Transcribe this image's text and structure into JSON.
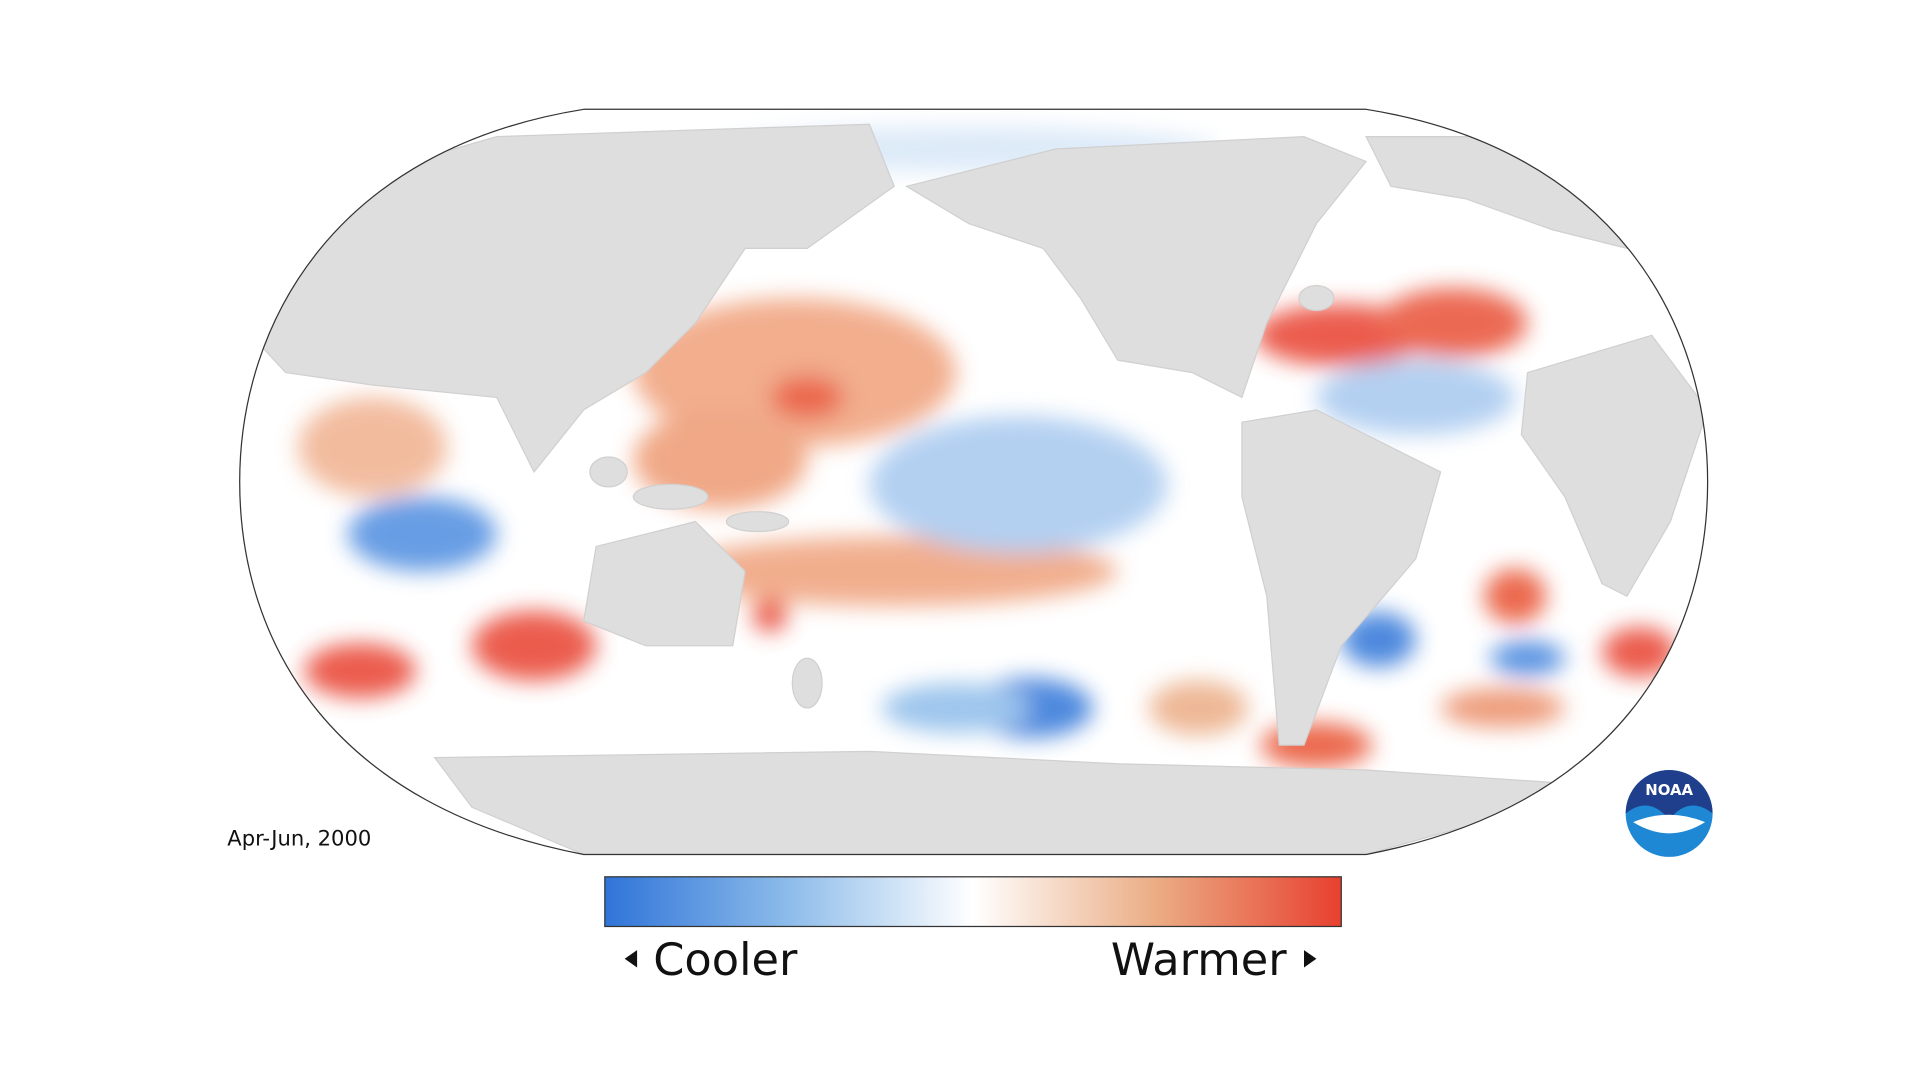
{
  "map": {
    "period_label": "Apr-Jun, 2000",
    "legend": {
      "low_label": "Cooler",
      "high_label": "Warmer"
    },
    "logo_text": "NOAA"
  }
}
